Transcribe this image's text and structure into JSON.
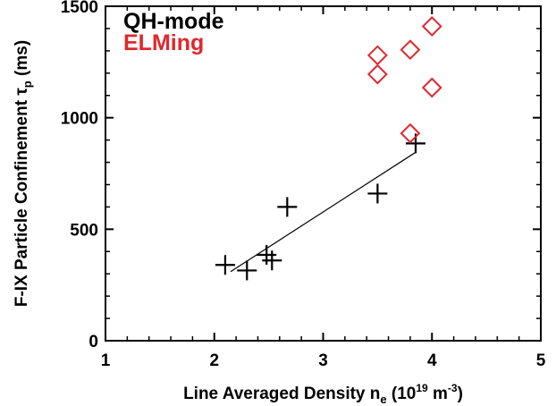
{
  "chart_data": {
    "type": "scatter",
    "xlabel": {
      "main": "Line Averaged Density n",
      "sub": "e",
      "paren_open": " (10",
      "sup1": "19",
      "mid": " m",
      "sup2": "-3",
      "paren_close": ")"
    },
    "ylabel": {
      "main": "F-IX Particle Confinement τ",
      "sub": "p",
      "unit": " (ms)"
    },
    "xlim": [
      1,
      5
    ],
    "ylim": [
      0,
      1500
    ],
    "x_ticks": [
      1,
      2,
      3,
      4,
      5
    ],
    "y_ticks": [
      0,
      500,
      1000,
      1500
    ],
    "grid": false,
    "legend_position": "top-left",
    "series": [
      {
        "name": "QH-mode",
        "color": "#000000",
        "marker": "plus",
        "x": [
          2.1,
          2.3,
          2.48,
          2.53,
          2.67,
          3.5,
          3.85
        ],
        "y": [
          340,
          315,
          385,
          360,
          600,
          660,
          885
        ]
      },
      {
        "name": "ELMing",
        "color": "#e0282d",
        "marker": "diamond",
        "x": [
          3.5,
          3.5,
          3.8,
          3.8,
          4.0,
          4.0
        ],
        "y": [
          1280,
          1195,
          1305,
          930,
          1410,
          1135
        ]
      }
    ],
    "fit_line": {
      "x": [
        2.15,
        3.85
      ],
      "y": [
        310,
        845
      ],
      "color": "#000000"
    }
  }
}
